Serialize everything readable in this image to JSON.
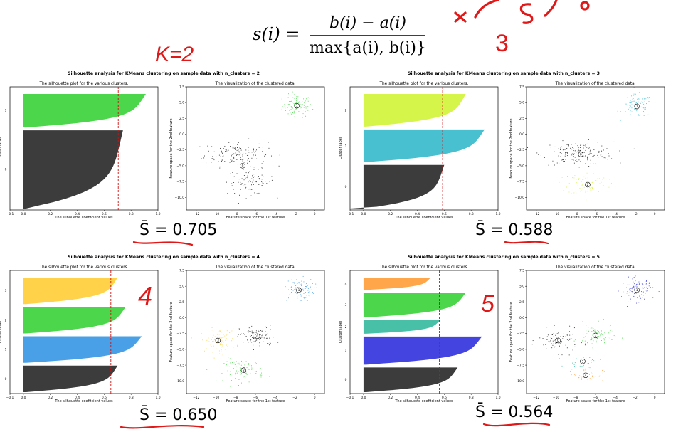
{
  "formula": {
    "lhs": "s(i) =",
    "numerator": "b(i) − a(i)",
    "denominator": "max{a(i), b(i)}"
  },
  "annotations": {
    "k_equals_2": "K=2",
    "k3": "3",
    "k4": "4",
    "k5": "5"
  },
  "score_prefix": "S̄ = ",
  "colors": {
    "annotation": "#e01818",
    "avg_line": "#d01010",
    "dark_cluster": "#3c3c3c"
  },
  "panels": [
    {
      "id": "k2",
      "title": "Silhouette analysis for KMeans clustering on sample data with n_clusters = 2",
      "score": "0.705",
      "chart_data": {
        "type": "scatter",
        "silhouette": {
          "title": "The silhouette plot for the various clusters.",
          "xlabel": "The silhouette coefficient values",
          "ylabel": "Cluster label",
          "xlim": [
            -0.1,
            1.0
          ],
          "xticks": [
            "−0.1",
            "0.0",
            "0.2",
            "0.4",
            "0.6",
            "0.8",
            "1.0"
          ],
          "avg": 0.705,
          "clusters": [
            {
              "label": "0",
              "size": 350,
              "max": 0.74,
              "color": "#3c3c3c"
            },
            {
              "label": "1",
              "size": 150,
              "max": 0.91,
              "color": "#4cd64c"
            }
          ]
        },
        "scatter": {
          "title": "The visualization of the clustered data.",
          "xlabel": "Feature space for the 1st feature",
          "ylabel": "Feature space for the 2nd feature",
          "xlim": [
            -13,
            1
          ],
          "ylim": [
            -12,
            7.5
          ],
          "xticks": [
            "−12",
            "−10",
            "−8",
            "−6",
            "−4",
            "−2",
            "0"
          ],
          "yticks": [
            "7.5",
            "5.0",
            "2.5",
            "0.0",
            "−2.5",
            "−5.0",
            "−7.5",
            "−10.0"
          ],
          "blobs": [
            {
              "cx": -1.8,
              "cy": 4.5,
              "sx": 0.75,
              "sy": 0.9,
              "n": 100,
              "color": "#4cd64c"
            },
            {
              "cx": -8.0,
              "cy": -3.0,
              "sx": 1.6,
              "sy": 1.0,
              "n": 160,
              "color": "#222222"
            },
            {
              "cx": -6.5,
              "cy": -7.5,
              "sx": 1.2,
              "sy": 1.0,
              "n": 100,
              "color": "#222222"
            }
          ],
          "centers": [
            {
              "label": "0",
              "x": -7.3,
              "y": -5.0
            },
            {
              "label": "1",
              "x": -1.8,
              "y": 4.5
            }
          ]
        }
      }
    },
    {
      "id": "k3",
      "title": "Silhouette analysis for KMeans clustering on sample data with n_clusters = 3",
      "score": "0.588",
      "chart_data": {
        "type": "scatter",
        "silhouette": {
          "title": "The silhouette plot for the various clusters.",
          "xlabel": "The silhouette coefficient values",
          "ylabel": "Cluster label",
          "xlim": [
            -0.1,
            1.0
          ],
          "xticks": [
            "−0.1",
            "0.0",
            "0.2",
            "0.4",
            "0.6",
            "0.8",
            "1.0"
          ],
          "avg": 0.588,
          "clusters": [
            {
              "label": "0",
              "size": 200,
              "max": 0.6,
              "color": "#3c3c3c",
              "neg": -0.1
            },
            {
              "label": "1",
              "size": 150,
              "max": 0.9,
              "color": "#48c0d0"
            },
            {
              "label": "2",
              "size": 150,
              "max": 0.76,
              "color": "#d6f54a"
            }
          ]
        },
        "scatter": {
          "title": "The visualization of the clustered data.",
          "xlabel": "Feature space for the 1st feature",
          "ylabel": "Feature space for the 2nd feature",
          "xlim": [
            -13,
            1
          ],
          "ylim": [
            -12,
            7.5
          ],
          "xticks": [
            "−12",
            "−10",
            "−8",
            "−6",
            "−4",
            "−2",
            "0"
          ],
          "yticks": [
            "7.5",
            "5.0",
            "2.5",
            "0.0",
            "−2.5",
            "−5.0",
            "−7.5",
            "−10.0"
          ],
          "blobs": [
            {
              "cx": -1.8,
              "cy": 4.5,
              "sx": 0.75,
              "sy": 0.9,
              "n": 100,
              "color": "#48c0d0"
            },
            {
              "cx": -7.8,
              "cy": -3.0,
              "sx": 1.8,
              "sy": 0.9,
              "n": 170,
              "color": "#222222"
            },
            {
              "cx": -6.8,
              "cy": -7.8,
              "sx": 1.0,
              "sy": 0.9,
              "n": 90,
              "color": "#d6f54a"
            }
          ],
          "centers": [
            {
              "label": "0",
              "x": -7.5,
              "y": -3.2
            },
            {
              "label": "1",
              "x": -1.8,
              "y": 4.4
            },
            {
              "label": "2",
              "x": -6.8,
              "y": -8.0
            }
          ]
        }
      }
    },
    {
      "id": "k4",
      "title": "Silhouette analysis for KMeans clustering on sample data with n_clusters = 4",
      "score": "0.650",
      "chart_data": {
        "type": "scatter",
        "silhouette": {
          "title": "The silhouette plot for the various clusters.",
          "xlabel": "The silhouette coefficient values",
          "ylabel": "Cluster label",
          "xlim": [
            -0.1,
            1.0
          ],
          "xticks": [
            "−0.1",
            "0.0",
            "0.2",
            "0.4",
            "0.6",
            "0.8",
            "1.0"
          ],
          "avg": 0.65,
          "clusters": [
            {
              "label": "0",
              "size": 125,
              "max": 0.7,
              "color": "#3c3c3c"
            },
            {
              "label": "1",
              "size": 125,
              "max": 0.88,
              "color": "#4aa0e6"
            },
            {
              "label": "2",
              "size": 125,
              "max": 0.76,
              "color": "#4cd64c"
            },
            {
              "label": "3",
              "size": 125,
              "max": 0.7,
              "color": "#ffd24a"
            }
          ]
        },
        "scatter": {
          "title": "The visualization of the clustered data.",
          "xlabel": "Feature space for the 1st feature",
          "ylabel": "Feature space for the 2nd feature",
          "xlim": [
            -13,
            1
          ],
          "ylim": [
            -12,
            7.5
          ],
          "xticks": [
            "−12",
            "−10",
            "−8",
            "−6",
            "−4",
            "−2",
            "0"
          ],
          "yticks": [
            "7.5",
            "5.0",
            "2.5",
            "0.0",
            "−2.5",
            "−5.0",
            "−7.5",
            "−10.0"
          ],
          "blobs": [
            {
              "cx": -1.7,
              "cy": 4.5,
              "sx": 0.8,
              "sy": 0.9,
              "n": 100,
              "color": "#4aa0e6"
            },
            {
              "cx": -5.8,
              "cy": -3.0,
              "sx": 0.9,
              "sy": 0.9,
              "n": 100,
              "color": "#222222"
            },
            {
              "cx": -9.8,
              "cy": -3.5,
              "sx": 0.9,
              "sy": 0.9,
              "n": 90,
              "color": "#ffd24a"
            },
            {
              "cx": -7.2,
              "cy": -8.3,
              "sx": 1.0,
              "sy": 0.9,
              "n": 90,
              "color": "#4cd64c"
            }
          ],
          "centers": [
            {
              "label": "0",
              "x": -5.8,
              "y": -2.9
            },
            {
              "label": "1",
              "x": -1.6,
              "y": 4.4
            },
            {
              "label": "2",
              "x": -7.2,
              "y": -8.3
            },
            {
              "label": "3",
              "x": -9.8,
              "y": -3.6
            }
          ]
        }
      }
    },
    {
      "id": "k5",
      "title": "Silhouette analysis for KMeans clustering on sample data with n_clusters = 5",
      "score": "0.564",
      "chart_data": {
        "type": "scatter",
        "silhouette": {
          "title": "The silhouette plot for the various clusters.",
          "xlabel": "The silhouette coefficient values",
          "ylabel": "Cluster label",
          "xlim": [
            -0.1,
            1.0
          ],
          "xticks": [
            "−0.1",
            "0.0",
            "0.2",
            "0.4",
            "0.6",
            "0.8",
            "1.0"
          ],
          "avg": 0.564,
          "clusters": [
            {
              "label": "0",
              "size": 110,
              "max": 0.7,
              "color": "#3c3c3c"
            },
            {
              "label": "1",
              "size": 125,
              "max": 0.88,
              "color": "#4444e0"
            },
            {
              "label": "2",
              "size": 60,
              "max": 0.57,
              "color": "#48c0a8"
            },
            {
              "label": "3",
              "size": 110,
              "max": 0.76,
              "color": "#4cd64c"
            },
            {
              "label": "4",
              "size": 55,
              "max": 0.5,
              "color": "#ffa64a"
            }
          ]
        },
        "scatter": {
          "title": "The visualization of the clustered data.",
          "xlabel": "Feature space for the 1st feature",
          "ylabel": "Feature space for the 2nd feature",
          "xlim": [
            -13,
            1
          ],
          "ylim": [
            -12,
            7.5
          ],
          "xticks": [
            "−12",
            "−10",
            "−8",
            "−6",
            "−4",
            "−2",
            "0"
          ],
          "yticks": [
            "7.5",
            "5.0",
            "2.5",
            "0.0",
            "−2.5",
            "−5.0",
            "−7.5",
            "−10.0"
          ],
          "blobs": [
            {
              "cx": -1.8,
              "cy": 4.5,
              "sx": 0.8,
              "sy": 0.9,
              "n": 100,
              "color": "#4444e0"
            },
            {
              "cx": -9.8,
              "cy": -3.6,
              "sx": 1.0,
              "sy": 0.9,
              "n": 90,
              "color": "#222222"
            },
            {
              "cx": -6.0,
              "cy": -2.8,
              "sx": 0.9,
              "sy": 0.9,
              "n": 90,
              "color": "#4cd64c"
            },
            {
              "cx": -7.3,
              "cy": -7.0,
              "sx": 0.8,
              "sy": 0.5,
              "n": 40,
              "color": "#48c0a8"
            },
            {
              "cx": -7.0,
              "cy": -9.0,
              "sx": 0.9,
              "sy": 0.5,
              "n": 40,
              "color": "#ffa64a"
            }
          ],
          "centers": [
            {
              "label": "0",
              "x": -9.8,
              "y": -3.6
            },
            {
              "label": "1",
              "x": -1.8,
              "y": 4.4
            },
            {
              "label": "2",
              "x": -7.3,
              "y": -6.9
            },
            {
              "label": "3",
              "x": -6.0,
              "y": -2.8
            },
            {
              "label": "4",
              "x": -7.0,
              "y": -9.1
            }
          ]
        }
      }
    }
  ]
}
